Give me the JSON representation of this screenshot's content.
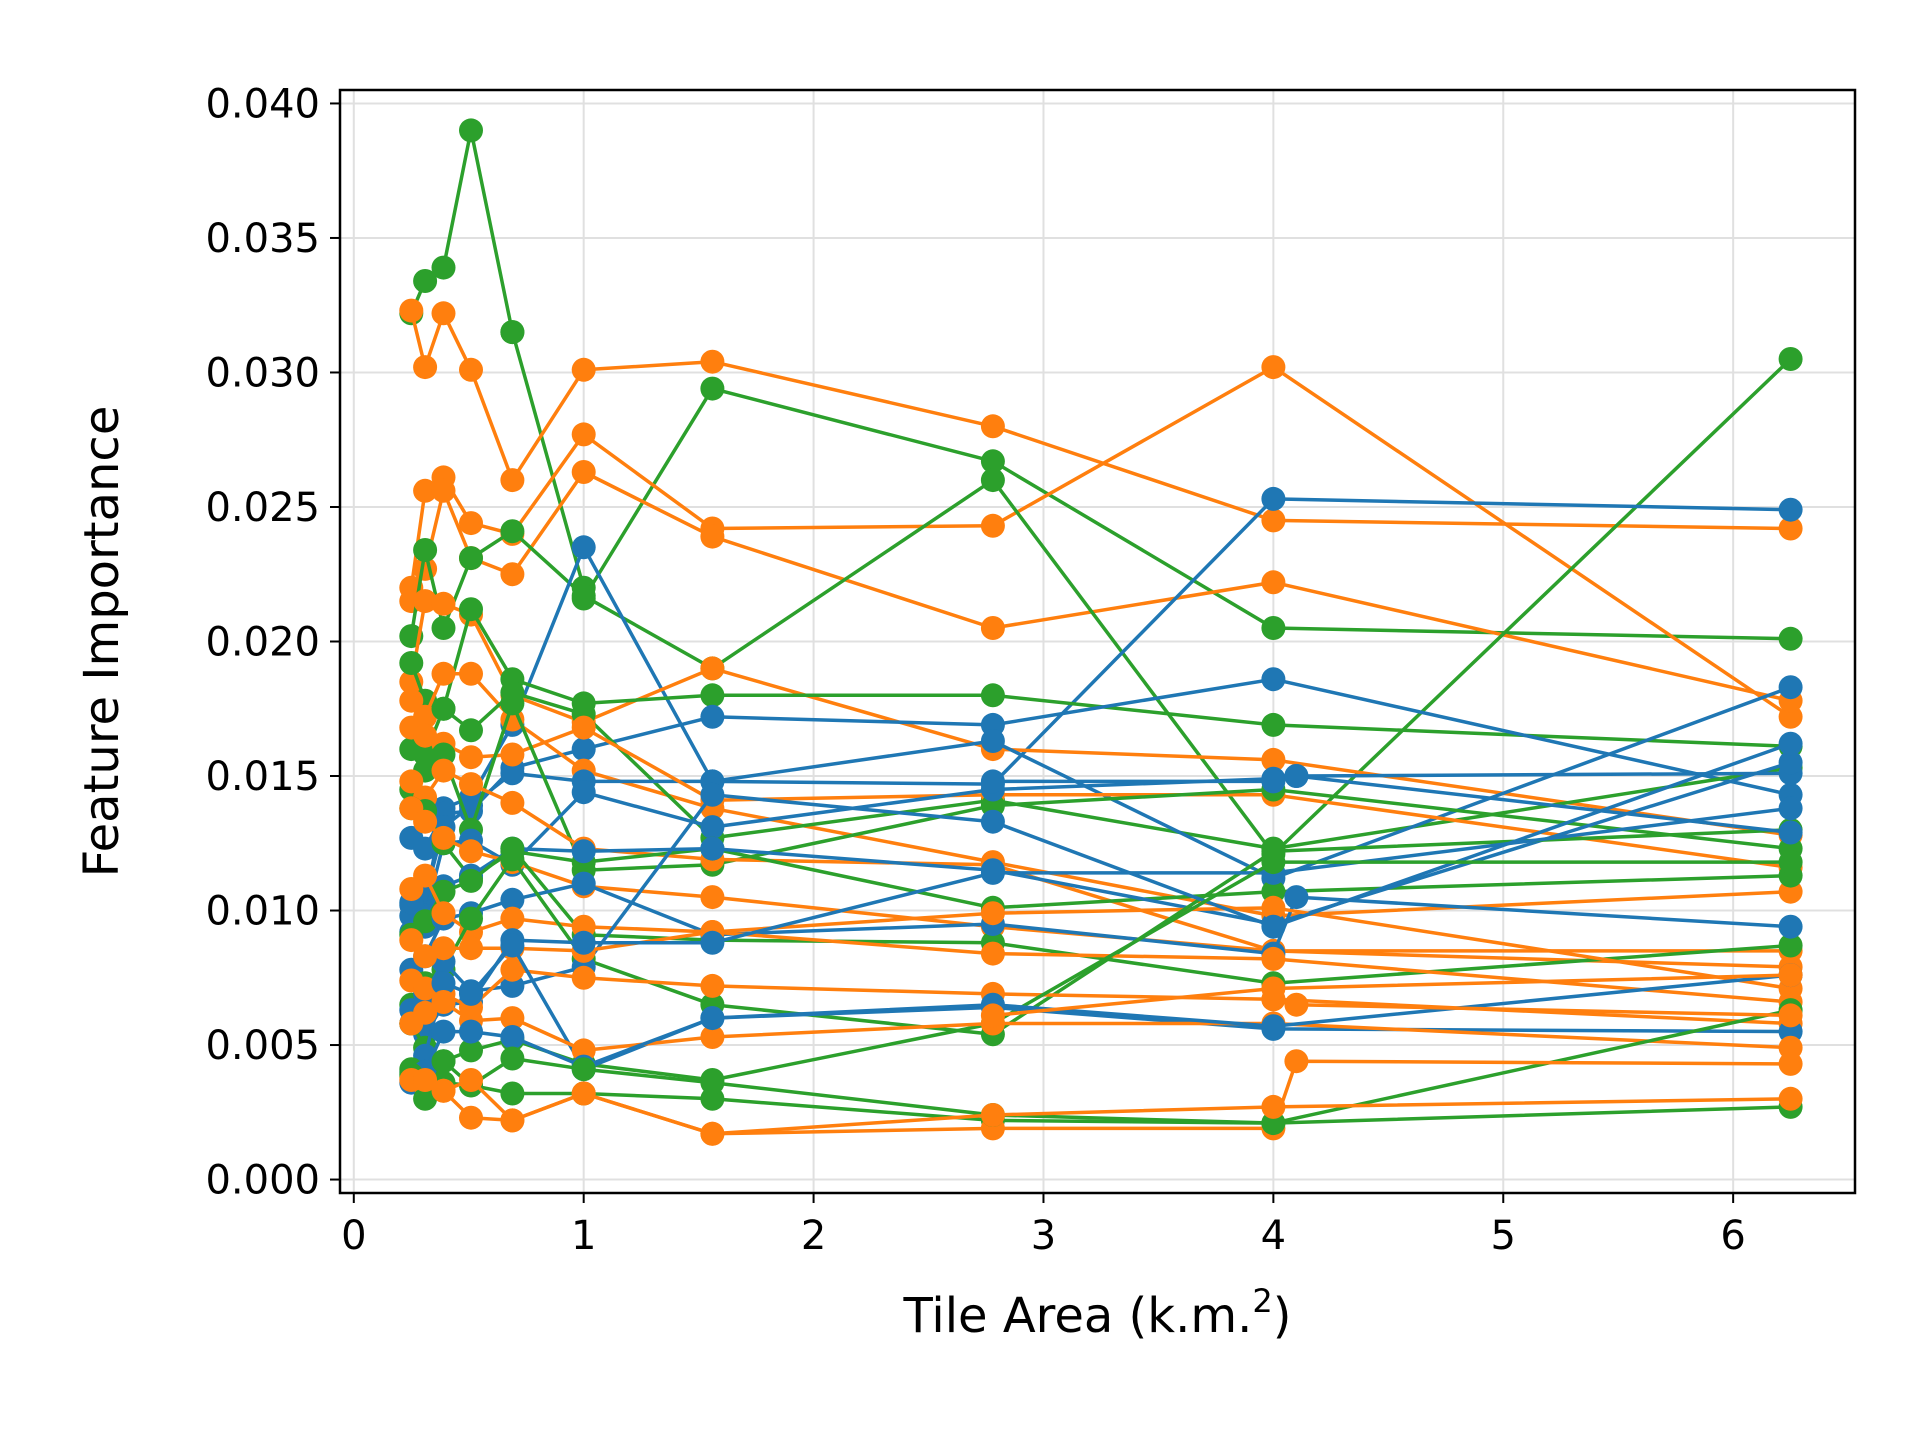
{
  "chart_data": {
    "type": "line",
    "title": "",
    "xlabel": "Tile Area (k.m.",
    "xlabel_superscript": "2",
    "xlabel_suffix": ")",
    "ylabel": "Feature Importance",
    "xlim": [
      -0.06,
      6.53
    ],
    "ylim": [
      -0.0005,
      0.0405
    ],
    "x_ticks": [
      0,
      1,
      2,
      3,
      4,
      5,
      6
    ],
    "x_tick_labels": [
      "0",
      "1",
      "2",
      "3",
      "4",
      "5",
      "6"
    ],
    "y_ticks": [
      0.0,
      0.005,
      0.01,
      0.015,
      0.02,
      0.025,
      0.03,
      0.035,
      0.04
    ],
    "y_tick_labels": [
      "0.000",
      "0.005",
      "0.010",
      "0.015",
      "0.020",
      "0.025",
      "0.030",
      "0.035",
      "0.040"
    ],
    "grid": true,
    "legend": false,
    "colors": {
      "blue": "#1f77b4",
      "orange": "#ff7f0e",
      "green": "#2ca02c"
    },
    "series": [
      {
        "color": "green",
        "x": [
          0.25,
          0.31,
          0.39,
          0.51,
          0.69
        ],
        "y": [
          0.0322,
          0.0334,
          0.0339,
          0.039,
          0.0315
        ]
      },
      {
        "color": "green",
        "x": [
          0.69,
          1.0
        ],
        "y": [
          0.0315,
          0.022
        ]
      },
      {
        "color": "orange",
        "x": [
          0.25,
          0.31,
          0.39,
          0.51,
          0.69,
          1.0,
          1.56,
          2.78,
          4.0,
          6.25
        ],
        "y": [
          0.0323,
          0.0302,
          0.0322,
          0.0301,
          0.026,
          0.0301,
          0.0304,
          0.028,
          0.0245,
          0.0242
        ]
      },
      {
        "color": "green",
        "x": [
          1.0,
          1.56,
          2.78,
          4.0,
          6.25
        ],
        "y": [
          0.0216,
          0.0294,
          0.0267,
          0.0205,
          0.0201
        ]
      },
      {
        "color": "orange",
        "x": [
          0.25,
          0.31,
          0.39,
          0.51,
          0.69,
          1.0,
          1.56,
          2.78,
          4.0,
          6.25
        ],
        "y": [
          0.022,
          0.0256,
          0.0261,
          0.0244,
          0.024,
          0.0277,
          0.0242,
          0.0243,
          0.0302,
          0.0172
        ]
      },
      {
        "color": "orange",
        "x": [
          0.25,
          0.31,
          0.39,
          0.51,
          0.69,
          1.0,
          1.56,
          2.78,
          4.0,
          6.25
        ],
        "y": [
          0.0215,
          0.0227,
          0.0256,
          0.0231,
          0.0225,
          0.0263,
          0.0239,
          0.0205,
          0.0222,
          0.0178
        ]
      },
      {
        "color": "green",
        "x": [
          0.25,
          0.31,
          0.39,
          0.51,
          0.69,
          1.0,
          1.56,
          2.78,
          4.0,
          6.25
        ],
        "y": [
          0.0202,
          0.0234,
          0.0205,
          0.0231,
          0.0241,
          0.0217,
          0.019,
          0.026,
          0.0121,
          0.0305
        ]
      },
      {
        "color": "blue",
        "x": [
          0.25,
          0.31,
          0.39,
          0.51,
          0.69,
          1.0,
          1.56,
          2.78,
          4.0,
          6.25
        ],
        "y": [
          0.0102,
          0.0103,
          0.0138,
          0.0142,
          0.0169,
          0.0235,
          0.0148,
          0.0147,
          0.0253,
          0.0249
        ]
      },
      {
        "color": "orange",
        "x": [
          0.25,
          0.31,
          0.39,
          0.51,
          0.69,
          1.0,
          1.56,
          2.78,
          4.0,
          6.25
        ],
        "y": [
          0.0185,
          0.0215,
          0.0214,
          0.021,
          0.018,
          0.017,
          0.019,
          0.016,
          0.0156,
          0.0128
        ]
      },
      {
        "color": "green",
        "x": [
          0.25,
          0.31,
          0.39,
          0.51,
          0.69,
          1.0,
          1.56,
          2.78,
          4.0,
          6.25
        ],
        "y": [
          0.0192,
          0.0178,
          0.0175,
          0.0212,
          0.0186,
          0.0177,
          0.018,
          0.018,
          0.0169,
          0.0161
        ]
      },
      {
        "color": "blue",
        "x": [
          0.25,
          0.31,
          0.39,
          0.51,
          0.69,
          1.0,
          1.56,
          2.78,
          4.0,
          6.25
        ],
        "y": [
          0.0127,
          0.0123,
          0.0136,
          0.0137,
          0.0153,
          0.016,
          0.0172,
          0.0169,
          0.0186,
          0.0143
        ]
      },
      {
        "color": "orange",
        "x": [
          0.25,
          0.31,
          0.39,
          0.51,
          0.69,
          1.0,
          1.56,
          2.78,
          4.0,
          6.25
        ],
        "y": [
          0.0178,
          0.0172,
          0.0188,
          0.0188,
          0.0171,
          0.0152,
          0.0138,
          0.0118,
          0.0098,
          0.0107
        ]
      },
      {
        "color": "green",
        "x": [
          0.25,
          0.31,
          0.39,
          0.51,
          0.69,
          1.0,
          1.56,
          2.78,
          4.0,
          6.25
        ],
        "y": [
          0.016,
          0.0158,
          0.0175,
          0.0167,
          0.0181,
          0.0173,
          0.0127,
          0.0141,
          0.0123,
          0.0153
        ]
      },
      {
        "color": "blue",
        "x": [
          0.25,
          0.31,
          0.39,
          0.51,
          0.69,
          1.0,
          1.56,
          2.78,
          4.0,
          6.25
        ],
        "y": [
          0.0098,
          0.0105,
          0.0131,
          0.0139,
          0.0151,
          0.0148,
          0.0148,
          0.0163,
          0.0112,
          0.0183
        ]
      },
      {
        "color": "orange",
        "x": [
          0.25,
          0.31,
          0.39,
          0.51,
          0.69,
          1.0,
          1.56,
          2.78,
          4.0,
          6.25
        ],
        "y": [
          0.0168,
          0.0165,
          0.0162,
          0.0157,
          0.0158,
          0.0168,
          0.0141,
          0.0143,
          0.0143,
          0.0116
        ]
      },
      {
        "color": "green",
        "x": [
          0.25,
          0.31,
          0.39,
          0.51,
          0.69,
          1.0,
          1.56,
          2.78,
          4.0,
          6.25
        ],
        "y": [
          0.0145,
          0.0152,
          0.0158,
          0.013,
          0.0177,
          0.0115,
          0.0117,
          0.0139,
          0.0145,
          0.0123
        ]
      },
      {
        "color": "blue",
        "x": [
          0.25,
          0.31,
          0.39,
          0.51,
          0.69,
          1.0,
          1.56,
          2.78,
          4.0,
          4.1,
          6.25
        ],
        "y": [
          0.0092,
          0.0098,
          0.0125,
          0.0126,
          0.0117,
          0.0144,
          0.0131,
          0.0145,
          0.0149,
          0.015,
          0.0151
        ]
      },
      {
        "color": "orange",
        "x": [
          0.25,
          0.31,
          0.39,
          0.51,
          0.69,
          1.0,
          1.56,
          2.78,
          4.0,
          6.25
        ],
        "y": [
          0.0148,
          0.0142,
          0.0152,
          0.0147,
          0.014,
          0.0123,
          0.0119,
          0.0117,
          0.0085,
          0.0085
        ]
      },
      {
        "color": "green",
        "x": [
          0.25,
          0.31,
          0.39,
          0.51,
          0.69,
          1.0,
          1.56,
          2.78,
          4.0,
          6.25
        ],
        "y": [
          0.0138,
          0.0137,
          0.0125,
          0.0112,
          0.0122,
          0.0118,
          0.0123,
          0.0101,
          0.0107,
          0.0113
        ]
      },
      {
        "color": "blue",
        "x": [
          0.25,
          0.31,
          0.39,
          0.51,
          0.69,
          1.0,
          1.56,
          2.78,
          4.0,
          6.25
        ],
        "y": [
          0.0103,
          0.0094,
          0.0109,
          0.0113,
          0.0123,
          0.0122,
          0.0123,
          0.0115,
          0.0095,
          0.0155
        ]
      },
      {
        "color": "orange",
        "x": [
          0.25,
          0.31,
          0.39,
          0.51,
          0.69,
          1.0,
          1.56,
          2.78,
          4.0,
          6.25
        ],
        "y": [
          0.0138,
          0.0133,
          0.0127,
          0.0122,
          0.0118,
          0.0109,
          0.0105,
          0.0094,
          0.0085,
          0.0079
        ]
      },
      {
        "color": "green",
        "x": [
          0.25,
          0.31,
          0.39,
          0.51,
          0.69,
          1.0,
          1.56,
          2.78,
          4.0,
          6.25
        ],
        "y": [
          0.0091,
          0.0096,
          0.0107,
          0.0111,
          0.0123,
          0.0091,
          0.0089,
          0.0088,
          0.0073,
          0.0087
        ]
      },
      {
        "color": "blue",
        "x": [
          0.25,
          0.31,
          0.39,
          0.51,
          0.69,
          1.0,
          1.56,
          2.78,
          4.0,
          4.1,
          6.25
        ],
        "y": [
          0.0078,
          0.0083,
          0.0097,
          0.0099,
          0.0104,
          0.011,
          0.0091,
          0.0095,
          0.0084,
          0.0105,
          0.0094
        ]
      },
      {
        "color": "orange",
        "x": [
          0.25,
          0.31,
          0.39,
          0.51,
          0.69,
          1.0,
          1.56,
          2.78,
          4.0,
          6.25
        ],
        "y": [
          0.0108,
          0.0113,
          0.0099,
          0.0092,
          0.0097,
          0.0094,
          0.0092,
          0.0099,
          0.0101,
          0.0071
        ]
      },
      {
        "color": "green",
        "x": [
          0.25,
          0.31,
          0.39,
          0.51,
          0.69,
          1.0,
          1.56,
          2.78,
          4.0,
          6.25
        ],
        "y": [
          0.0065,
          0.0073,
          0.0078,
          0.0097,
          0.0119,
          0.0082,
          0.0065,
          0.0054,
          0.0122,
          0.013
        ]
      },
      {
        "color": "blue",
        "x": [
          0.25,
          0.31,
          0.39,
          0.51,
          0.69,
          1.0,
          1.56,
          2.78,
          4.0,
          6.25
        ],
        "y": [
          0.0063,
          0.0069,
          0.0081,
          0.007,
          0.0072,
          0.0079,
          0.0143,
          0.0133,
          0.0094,
          0.0162
        ]
      },
      {
        "color": "orange",
        "x": [
          0.25,
          0.31,
          0.39,
          0.51,
          0.69,
          1.0,
          1.56,
          2.78,
          4.0,
          6.25
        ],
        "y": [
          0.0089,
          0.0083,
          0.0086,
          0.0086,
          0.0086,
          0.0085,
          0.0092,
          0.0084,
          0.0082,
          0.0066
        ]
      },
      {
        "color": "blue",
        "x": [
          0.25,
          0.31,
          0.39,
          0.51,
          0.69,
          1.0,
          1.56,
          2.78,
          4.0,
          6.25
        ],
        "y": [
          0.0058,
          0.0054,
          0.0065,
          0.0066,
          0.0089,
          0.0088,
          0.0088,
          0.0114,
          0.0114,
          0.0138
        ]
      },
      {
        "color": "orange",
        "x": [
          0.25,
          0.31,
          0.39,
          0.51,
          0.69,
          1.0,
          1.56,
          2.78,
          4.0,
          6.25
        ],
        "y": [
          0.0074,
          0.0071,
          0.0069,
          0.0064,
          0.0078,
          0.0075,
          0.0072,
          0.0069,
          0.0067,
          0.0058
        ]
      },
      {
        "color": "green",
        "x": [
          0.25,
          0.31,
          0.39,
          0.51,
          0.69,
          1.0,
          1.56,
          2.78,
          4.0,
          6.25
        ],
        "y": [
          0.0058,
          0.0049,
          0.0044,
          0.0048,
          0.0052,
          0.0043,
          0.0037,
          0.0058,
          0.0118,
          0.0118
        ]
      },
      {
        "color": "blue",
        "x": [
          0.25,
          0.31,
          0.39,
          0.51,
          0.69,
          1.0,
          1.56,
          2.78,
          4.0,
          6.25
        ],
        "y": [
          0.004,
          0.0046,
          0.0073,
          0.0069,
          0.0087,
          0.0041,
          0.006,
          0.0064,
          0.0056,
          0.0055
        ]
      },
      {
        "color": "orange",
        "x": [
          0.25,
          0.31,
          0.39,
          0.51,
          0.69,
          1.0,
          1.56,
          2.78,
          4.0,
          6.25
        ],
        "y": [
          0.0058,
          0.0062,
          0.0066,
          0.0059,
          0.006,
          0.0048,
          0.0053,
          0.0058,
          0.0058,
          0.0049
        ]
      },
      {
        "color": "green",
        "x": [
          0.25,
          0.31,
          0.39,
          0.51,
          0.69,
          1.0,
          1.56,
          2.78,
          4.0,
          6.25
        ],
        "y": [
          0.0041,
          0.0037,
          0.0036,
          0.0035,
          0.0032,
          0.0032,
          0.003,
          0.0022,
          0.0021,
          0.0063
        ]
      },
      {
        "color": "blue",
        "x": [
          0.25,
          0.31,
          0.39,
          0.51,
          0.69,
          1.0,
          1.56,
          2.78,
          4.0,
          6.25
        ],
        "y": [
          0.0036,
          0.004,
          0.0055,
          0.0055,
          0.0053,
          0.0042,
          0.006,
          0.0065,
          0.0057,
          0.0076
        ]
      },
      {
        "color": "orange",
        "x": [
          0.25,
          0.31,
          0.39,
          0.51,
          0.69,
          1.0,
          1.56,
          2.78,
          4.0,
          4.1,
          6.25
        ],
        "y": [
          0.0038,
          0.0035,
          0.0033,
          0.0023,
          0.0022,
          0.0032,
          0.0017,
          0.0019,
          0.0019,
          0.0044,
          0.0043
        ]
      },
      {
        "color": "green",
        "x": [
          0.25,
          0.31,
          0.39,
          0.51,
          0.69,
          1.0,
          1.56,
          2.78,
          4.0,
          6.25
        ],
        "y": [
          0.0039,
          0.003,
          0.0044,
          0.0035,
          0.0045,
          0.0041,
          0.0036,
          0.0024,
          0.0021,
          0.0027
        ]
      },
      {
        "color": "orange",
        "x": [
          0.25,
          0.31,
          0.39,
          0.51,
          0.69,
          1.0,
          1.56,
          2.78,
          4.0,
          6.25
        ],
        "y": [
          0.0037,
          0.0037,
          0.0033,
          0.0037,
          0.0022,
          0.0032,
          0.0017,
          0.0024,
          0.0027,
          0.003
        ]
      },
      {
        "color": "blue",
        "x": [
          2.78,
          4.0,
          4.1,
          6.25
        ],
        "y": [
          0.0148,
          0.0148,
          0.015,
          0.0129
        ]
      },
      {
        "color": "orange",
        "x": [
          4.0,
          4.1,
          6.25
        ],
        "y": [
          0.0067,
          0.0065,
          0.0061
        ]
      },
      {
        "color": "orange",
        "x": [
          2.78,
          4.0,
          6.25
        ],
        "y": [
          0.0061,
          0.0071,
          0.0076
        ]
      }
    ]
  }
}
